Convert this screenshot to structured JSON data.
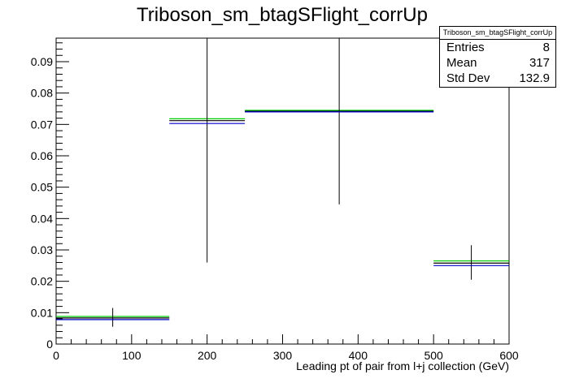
{
  "chart_data": {
    "type": "line",
    "title": "Triboson_sm_btagSFlight_corrUp",
    "xlabel": "Leading pt of pair from l+j collection (GeV)",
    "ylabel": "",
    "xlim": [
      0,
      600
    ],
    "ylim": [
      0,
      0.0975
    ],
    "xticks": [
      0,
      100,
      200,
      300,
      400,
      500,
      600
    ],
    "xtick_labels": [
      "0",
      "100",
      "200",
      "300",
      "400",
      "500",
      "600"
    ],
    "yticks": [
      0,
      0.01,
      0.02,
      0.03,
      0.04,
      0.05,
      0.06,
      0.07,
      0.08,
      0.09
    ],
    "ytick_labels": [
      "0",
      "0.01",
      "0.02",
      "0.03",
      "0.04",
      "0.05",
      "0.06",
      "0.07",
      "0.08",
      "0.09"
    ],
    "grid": false,
    "bins": [
      {
        "x_low": 0,
        "x_high": 150,
        "x_center": 75
      },
      {
        "x_low": 150,
        "x_high": 250,
        "x_center": 200
      },
      {
        "x_low": 250,
        "x_high": 500,
        "x_center": 375
      },
      {
        "x_low": 500,
        "x_high": 600,
        "x_center": 550
      }
    ],
    "series": [
      {
        "color": "#00cc00",
        "values": [
          0.0088,
          0.0718,
          0.0745,
          0.0265
        ]
      },
      {
        "color": "#000000",
        "values": [
          0.0083,
          0.0712,
          0.0742,
          0.0258
        ],
        "error_low": [
          0.0055,
          0.026,
          0.0445,
          0.0205
        ],
        "error_high": [
          0.0115,
          0.0975,
          0.0975,
          0.0315
        ]
      },
      {
        "color": "#0000cc",
        "values": [
          0.0078,
          0.0703,
          0.074,
          0.025
        ]
      }
    ],
    "stats": {
      "name": "Triboson_sm_btagSFlight_corrUp",
      "rows": [
        {
          "label": "Entries",
          "value": "8"
        },
        {
          "label": "Mean",
          "value": "317"
        },
        {
          "label": "Std Dev",
          "value": "132.9"
        }
      ]
    }
  }
}
